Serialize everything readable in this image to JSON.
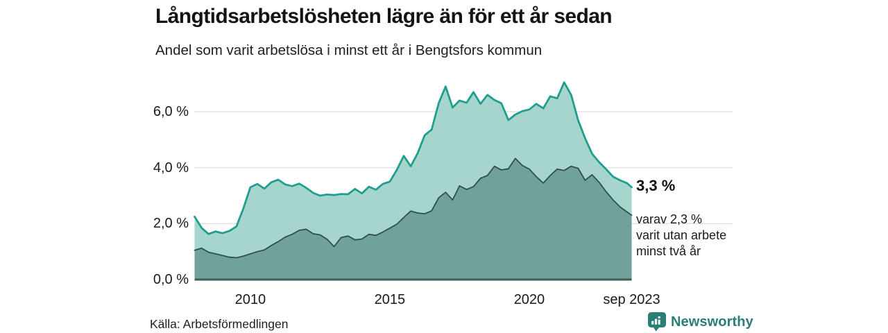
{
  "header": {
    "title": "Långtidsarbetslösheten lägre än för ett år sedan",
    "subtitle": "Andel som varit arbetslösa i minst ett år i Bengtsfors kommun"
  },
  "annotation": {
    "value": "3,3 %",
    "detail_lines": [
      "varav 2,3 %",
      "varit utan arbete",
      "minst två år"
    ]
  },
  "footer": {
    "source": "Källa: Arbetsförmedlingen",
    "brand": "Newsworthy"
  },
  "colors": {
    "line_total": "#1f9e8f",
    "fill_total": "#a6d5cd",
    "line_two_year": "#2f5049",
    "fill_two_year": "#70a19a",
    "baseline": "#3e5f59",
    "gridline": "#dcdcdc",
    "brand_teal": "#2b7e76",
    "text": "#1a1a1a"
  },
  "chart_data": {
    "type": "area",
    "title": "Långtidsarbetslösheten lägre än för ett år sedan",
    "subtitle": "Andel som varit arbetslösa i minst ett år i Bengtsfors kommun",
    "grid": "horizontal",
    "legend_position": "none",
    "x_domain": [
      2008.0,
      2023.67
    ],
    "y_domain": [
      0,
      7.3
    ],
    "x_ticks": [
      {
        "value": 2010,
        "label": "2010"
      },
      {
        "value": 2015,
        "label": "2015"
      },
      {
        "value": 2020,
        "label": "2020"
      },
      {
        "value": 2023.67,
        "label": "sep 2023"
      }
    ],
    "y_ticks": [
      {
        "value": 0,
        "label": "0,0 %"
      },
      {
        "value": 2,
        "label": "2,0 %"
      },
      {
        "value": 4,
        "label": "4,0 %"
      },
      {
        "value": 6,
        "label": "6,0 %"
      }
    ],
    "x": [
      2008.0,
      2008.25,
      2008.5,
      2008.75,
      2009.0,
      2009.25,
      2009.5,
      2009.75,
      2010.0,
      2010.25,
      2010.5,
      2010.75,
      2011.0,
      2011.25,
      2011.5,
      2011.75,
      2012.0,
      2012.25,
      2012.5,
      2012.75,
      2013.0,
      2013.25,
      2013.5,
      2013.75,
      2014.0,
      2014.25,
      2014.5,
      2014.75,
      2015.0,
      2015.25,
      2015.5,
      2015.75,
      2016.0,
      2016.25,
      2016.5,
      2016.75,
      2017.0,
      2017.25,
      2017.5,
      2017.75,
      2018.0,
      2018.25,
      2018.5,
      2018.75,
      2019.0,
      2019.25,
      2019.5,
      2019.75,
      2020.0,
      2020.25,
      2020.5,
      2020.75,
      2021.0,
      2021.25,
      2021.5,
      2021.75,
      2022.0,
      2022.25,
      2022.5,
      2022.75,
      2023.0,
      2023.25,
      2023.5,
      2023.67
    ],
    "series": [
      {
        "name": "Arbetslösa minst ett år",
        "end_value": 3.3,
        "values": [
          2.25,
          1.85,
          1.63,
          1.72,
          1.66,
          1.74,
          1.9,
          2.55,
          3.3,
          3.42,
          3.25,
          3.48,
          3.57,
          3.4,
          3.34,
          3.43,
          3.28,
          3.1,
          3.0,
          3.04,
          3.02,
          3.06,
          3.05,
          3.24,
          3.08,
          3.32,
          3.21,
          3.42,
          3.5,
          3.92,
          4.42,
          4.05,
          4.52,
          5.16,
          5.36,
          6.3,
          6.9,
          6.15,
          6.4,
          6.32,
          6.7,
          6.28,
          6.6,
          6.42,
          6.3,
          5.7,
          5.9,
          6.02,
          6.08,
          6.28,
          6.12,
          6.55,
          6.48,
          7.05,
          6.6,
          5.7,
          5.05,
          4.5,
          4.2,
          3.95,
          3.68,
          3.55,
          3.45,
          3.3
        ]
      },
      {
        "name": "varav arbetslösa minst två år",
        "end_value": 2.3,
        "values": [
          1.05,
          1.12,
          0.98,
          0.92,
          0.86,
          0.8,
          0.78,
          0.84,
          0.92,
          1.0,
          1.06,
          1.22,
          1.36,
          1.52,
          1.62,
          1.76,
          1.8,
          1.64,
          1.6,
          1.44,
          1.18,
          1.5,
          1.56,
          1.42,
          1.45,
          1.62,
          1.58,
          1.7,
          1.84,
          1.98,
          2.22,
          2.45,
          2.38,
          2.35,
          2.46,
          2.92,
          3.12,
          2.85,
          3.35,
          3.22,
          3.32,
          3.62,
          3.72,
          4.05,
          3.92,
          3.96,
          4.33,
          4.08,
          3.95,
          3.68,
          3.45,
          3.72,
          3.95,
          3.9,
          4.05,
          3.98,
          3.55,
          3.75,
          3.48,
          3.15,
          2.85,
          2.6,
          2.42,
          2.3
        ]
      }
    ]
  }
}
